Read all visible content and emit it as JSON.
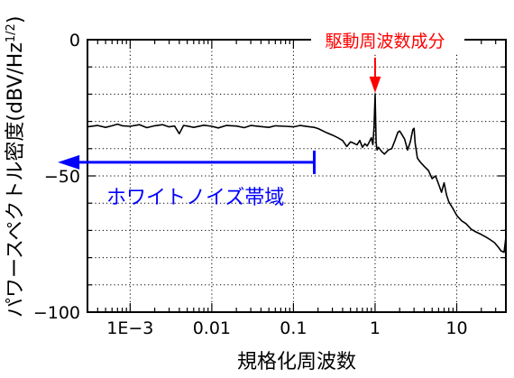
{
  "chart_data": {
    "type": "line",
    "title": "",
    "xlabel": "規格化周波数",
    "ylabel": "パワースペクトル密度",
    "ylabel_unit": "(dBV/Hz",
    "ylabel_unit_sup": "1/2",
    "ylabel_unit_close": ")",
    "x_scale": "log",
    "xlim": [
      0.0003,
      40
    ],
    "ylim": [
      -100,
      0
    ],
    "grid": true,
    "grid_style": "dotted",
    "x_ticks": [
      {
        "value": 0.001,
        "label": "1E−3"
      },
      {
        "value": 0.01,
        "label": "0.01"
      },
      {
        "value": 0.1,
        "label": "0.1"
      },
      {
        "value": 1,
        "label": "1"
      },
      {
        "value": 10,
        "label": "10"
      }
    ],
    "y_ticks": [
      {
        "value": 0,
        "label": "0"
      },
      {
        "value": -50,
        "label": "−50"
      },
      {
        "value": -100,
        "label": "−100"
      }
    ],
    "series": [
      {
        "name": "",
        "color": "#000000",
        "points": [
          [
            0.0003,
            -32.0
          ],
          [
            0.0004,
            -31.5
          ],
          [
            0.0005,
            -32.2
          ],
          [
            0.0006,
            -31.6
          ],
          [
            0.0007,
            -31.0
          ],
          [
            0.0008,
            -31.6
          ],
          [
            0.001,
            -31.8
          ],
          [
            0.0013,
            -31.2
          ],
          [
            0.0016,
            -32.3
          ],
          [
            0.002,
            -31.6
          ],
          [
            0.0025,
            -31.2
          ],
          [
            0.003,
            -32.0
          ],
          [
            0.0035,
            -31.7
          ],
          [
            0.004,
            -34.5
          ],
          [
            0.0045,
            -31.5
          ],
          [
            0.005,
            -31.7
          ],
          [
            0.006,
            -32.2
          ],
          [
            0.008,
            -31.4
          ],
          [
            0.01,
            -31.8
          ],
          [
            0.012,
            -32.4
          ],
          [
            0.015,
            -31.5
          ],
          [
            0.02,
            -31.7
          ],
          [
            0.025,
            -32.3
          ],
          [
            0.03,
            -31.5
          ],
          [
            0.04,
            -31.9
          ],
          [
            0.05,
            -32.2
          ],
          [
            0.06,
            -31.6
          ],
          [
            0.08,
            -31.8
          ],
          [
            0.1,
            -32.0
          ],
          [
            0.12,
            -31.5
          ],
          [
            0.15,
            -31.9
          ],
          [
            0.18,
            -32.2
          ],
          [
            0.2,
            -32.6
          ],
          [
            0.25,
            -34.0
          ],
          [
            0.3,
            -35.0
          ],
          [
            0.35,
            -36.0
          ],
          [
            0.4,
            -37.0
          ],
          [
            0.45,
            -39.2
          ],
          [
            0.5,
            -37.5
          ],
          [
            0.55,
            -38.0
          ],
          [
            0.6,
            -38.6
          ],
          [
            0.65,
            -37.0
          ],
          [
            0.7,
            -39.5
          ],
          [
            0.75,
            -38.2
          ],
          [
            0.8,
            -39.0
          ],
          [
            0.85,
            -37.5
          ],
          [
            0.9,
            -36.0
          ],
          [
            0.94,
            -38.5
          ],
          [
            0.97,
            -32.0
          ],
          [
            1.0,
            -20.0
          ],
          [
            1.03,
            -38.0
          ],
          [
            1.06,
            -40.5
          ],
          [
            1.1,
            -39.5
          ],
          [
            1.2,
            -41.0
          ],
          [
            1.3,
            -42.0
          ],
          [
            1.45,
            -40.5
          ],
          [
            1.6,
            -40.0
          ],
          [
            1.75,
            -37.0
          ],
          [
            1.9,
            -34.0
          ],
          [
            2.0,
            -33.5
          ],
          [
            2.1,
            -34.5
          ],
          [
            2.3,
            -36.5
          ],
          [
            2.5,
            -40.5
          ],
          [
            2.7,
            -37.5
          ],
          [
            2.9,
            -33.0
          ],
          [
            3.0,
            -32.5
          ],
          [
            3.1,
            -38.0
          ],
          [
            3.3,
            -43.5
          ],
          [
            3.6,
            -45.0
          ],
          [
            4.0,
            -46.5
          ],
          [
            4.5,
            -48.0
          ],
          [
            5.0,
            -51.0
          ],
          [
            5.5,
            -50.0
          ],
          [
            6.0,
            -53.0
          ],
          [
            6.5,
            -56.0
          ],
          [
            7.0,
            -52.5
          ],
          [
            7.5,
            -57.0
          ],
          [
            8.0,
            -59.5
          ],
          [
            9.0,
            -62.0
          ],
          [
            10.0,
            -64.5
          ],
          [
            11.5,
            -66.5
          ],
          [
            13.0,
            -67.5
          ],
          [
            15.0,
            -69.5
          ],
          [
            17.0,
            -70.5
          ],
          [
            20.0,
            -71.5
          ],
          [
            23.0,
            -72.5
          ],
          [
            26.0,
            -73.5
          ],
          [
            29.0,
            -74.5
          ],
          [
            32.0,
            -76.0
          ],
          [
            35.0,
            -77.5
          ],
          [
            38.0,
            -78.0
          ],
          [
            40.0,
            -72.5
          ]
        ]
      }
    ],
    "annotations": [
      {
        "id": "drive",
        "text": "駆動周波数成分",
        "color": "#ff0000",
        "arrow_tip": {
          "x": 1.0,
          "y": -18.5
        }
      },
      {
        "id": "white",
        "text": "ホワイトノイズ帯域",
        "color": "#0000ff",
        "arrow_from": {
          "x": 0.18,
          "y": -45.0
        },
        "arrow_to": {
          "x": 0.00013,
          "y": -45.0
        }
      }
    ]
  }
}
